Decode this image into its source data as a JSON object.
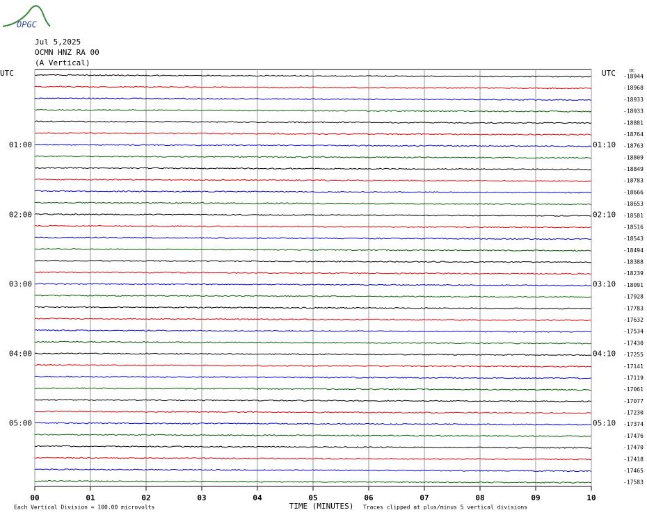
{
  "logo": "OPGC",
  "chart_data": {
    "type": "helicorder",
    "title": [
      "Jul 5,2025",
      "OCMN HNZ RA 00",
      "(A Vertical)"
    ],
    "left_axis_label": "UTC",
    "right_axis_label": "UTC",
    "dc_label": "DC",
    "xlabel": "TIME (MINUTES)",
    "scale_note": "Each Vertical Division =  100.00 microvolts",
    "clip_note": "Traces clipped at plus/minus 5 vertical divisions",
    "xlim": [
      0,
      10
    ],
    "xticks": [
      {
        "value": 0,
        "label": "00"
      },
      {
        "value": 1,
        "label": "01"
      },
      {
        "value": 2,
        "label": "02"
      },
      {
        "value": 3,
        "label": "03"
      },
      {
        "value": 4,
        "label": "04"
      },
      {
        "value": 5,
        "label": "05"
      },
      {
        "value": 6,
        "label": "06"
      },
      {
        "value": 7,
        "label": "07"
      },
      {
        "value": 8,
        "label": "08"
      },
      {
        "value": 9,
        "label": "09"
      },
      {
        "value": 10,
        "label": "10"
      }
    ],
    "grid": true,
    "colors": [
      "#000000",
      "#e00000",
      "#0000d0",
      "#006000"
    ],
    "left_labels": [
      null,
      null,
      null,
      null,
      null,
      null,
      "01:00",
      null,
      null,
      null,
      null,
      null,
      "02:00",
      null,
      null,
      null,
      null,
      null,
      "03:00",
      null,
      null,
      null,
      null,
      null,
      "04:00",
      null,
      null,
      null,
      null,
      null,
      "05:00",
      null,
      null,
      null,
      null,
      null
    ],
    "right_labels": [
      null,
      null,
      null,
      null,
      null,
      null,
      "01:10",
      null,
      null,
      null,
      null,
      null,
      "02:10",
      null,
      null,
      null,
      null,
      null,
      "03:10",
      null,
      null,
      null,
      null,
      null,
      "04:10",
      null,
      null,
      null,
      null,
      null,
      "05:10",
      null,
      null,
      null,
      null,
      null
    ],
    "dc_values": [
      -18944,
      -18968,
      -18933,
      -18933,
      -18881,
      -18764,
      -18763,
      -18809,
      -18849,
      -18783,
      -18666,
      -18653,
      -18581,
      -18516,
      -18543,
      -18494,
      -18388,
      -18239,
      -18091,
      -17928,
      -17783,
      -17632,
      -17534,
      -17430,
      -17255,
      -17141,
      -17119,
      -17061,
      -17077,
      -17230,
      -17374,
      -17476,
      -17470,
      -17418,
      -17465,
      -17583
    ]
  }
}
